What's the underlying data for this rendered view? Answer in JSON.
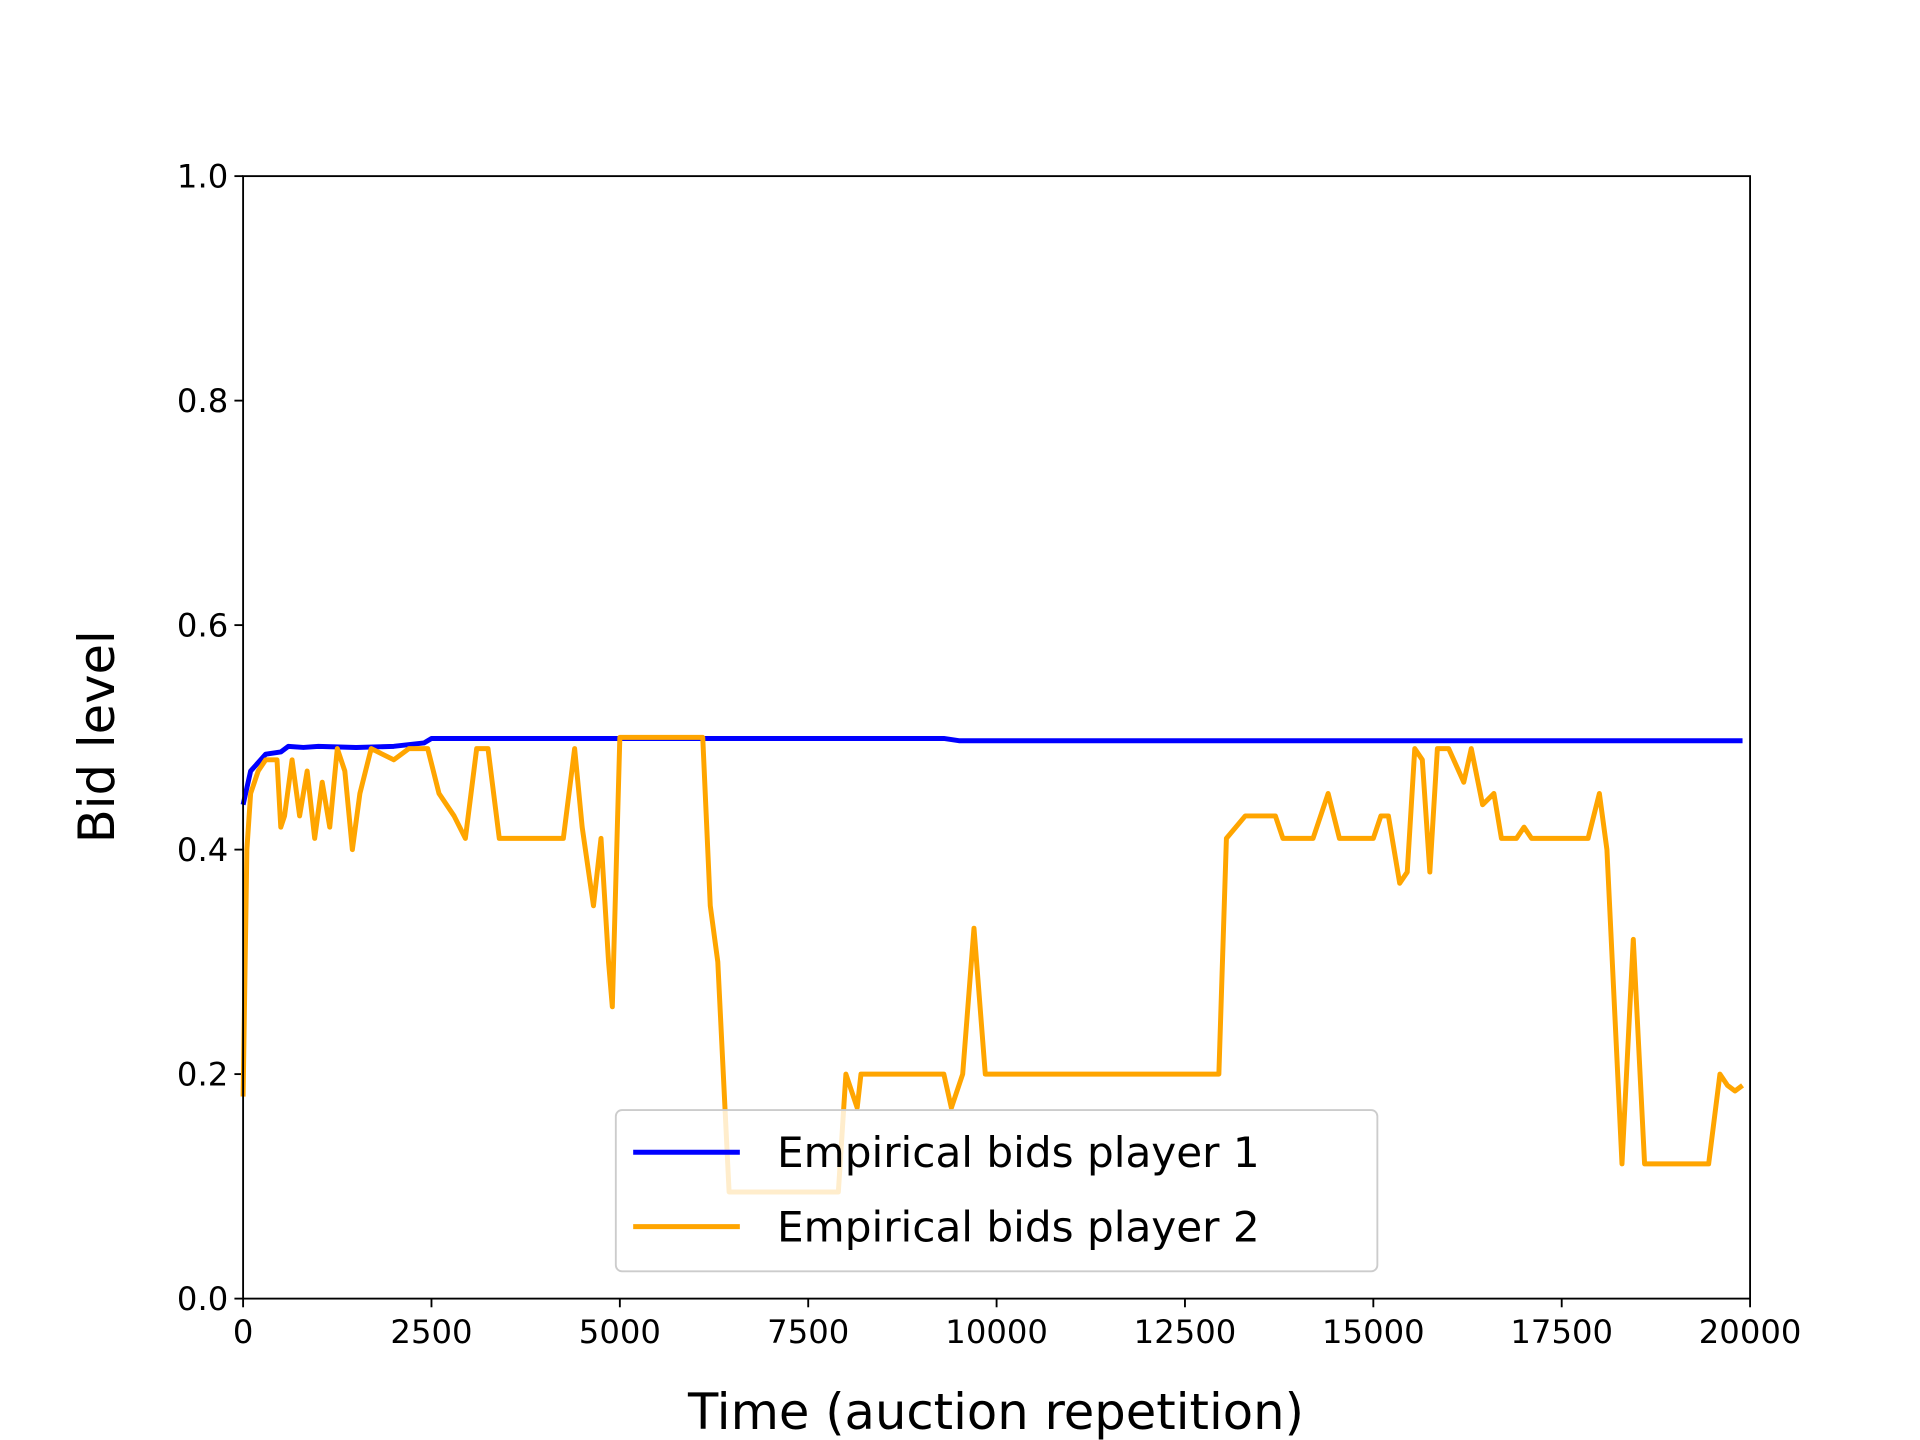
{
  "chart_data": {
    "type": "line",
    "xlabel": "Time (auction repetition)",
    "ylabel": "Bid level",
    "xlim": [
      0,
      20000
    ],
    "ylim": [
      0,
      1
    ],
    "xticks": [
      0,
      2500,
      5000,
      7500,
      10000,
      12500,
      15000,
      17500,
      20000
    ],
    "yticks": [
      {
        "value": 0,
        "label": "0.0"
      },
      0.2,
      0.4,
      0.6,
      0.8,
      {
        "value": 1,
        "label": "1.0"
      }
    ],
    "legend": "lower center",
    "series": [
      {
        "name": "Empirical bids player 1",
        "color": "#0000ff",
        "x": [
          0,
          100,
          300,
          500,
          600,
          800,
          1000,
          1500,
          2000,
          2400,
          2500,
          9300,
          9500,
          19900
        ],
        "values": [
          0.44,
          0.47,
          0.485,
          0.487,
          0.492,
          0.491,
          0.492,
          0.491,
          0.492,
          0.495,
          0.499,
          0.499,
          0.497,
          0.497
        ]
      },
      {
        "name": "Empirical bids player 2",
        "color": "#ffa500",
        "x": [
          0,
          50,
          100,
          200,
          300,
          450,
          500,
          550,
          650,
          750,
          850,
          950,
          1050,
          1150,
          1250,
          1350,
          1450,
          1550,
          1700,
          2000,
          2200,
          2450,
          2600,
          2800,
          2950,
          3100,
          3250,
          3400,
          4250,
          4400,
          4500,
          4650,
          4750,
          4850,
          4900,
          5000,
          6100,
          6200,
          6300,
          6450,
          7900,
          8000,
          8150,
          8200,
          9300,
          9400,
          9550,
          9700,
          9850,
          12950,
          13050,
          13300,
          13700,
          13800,
          14200,
          14400,
          14550,
          15000,
          15100,
          15200,
          15350,
          15450,
          15550,
          15650,
          15750,
          15850,
          16000,
          16200,
          16300,
          16450,
          16600,
          16700,
          16900,
          17000,
          17100,
          17850,
          18000,
          18100,
          18300,
          18450,
          18600,
          18800,
          19450,
          19600,
          19700,
          19800,
          19900
        ],
        "values": [
          0.18,
          0.4,
          0.45,
          0.47,
          0.48,
          0.48,
          0.42,
          0.43,
          0.48,
          0.43,
          0.47,
          0.41,
          0.46,
          0.42,
          0.49,
          0.47,
          0.4,
          0.45,
          0.49,
          0.48,
          0.49,
          0.49,
          0.45,
          0.43,
          0.41,
          0.49,
          0.49,
          0.41,
          0.41,
          0.49,
          0.42,
          0.35,
          0.41,
          0.3,
          0.26,
          0.5,
          0.5,
          0.35,
          0.3,
          0.095,
          0.095,
          0.2,
          0.17,
          0.2,
          0.2,
          0.17,
          0.2,
          0.33,
          0.2,
          0.2,
          0.41,
          0.43,
          0.43,
          0.41,
          0.41,
          0.45,
          0.41,
          0.41,
          0.43,
          0.43,
          0.37,
          0.38,
          0.49,
          0.48,
          0.38,
          0.49,
          0.49,
          0.46,
          0.49,
          0.44,
          0.45,
          0.41,
          0.41,
          0.42,
          0.41,
          0.41,
          0.45,
          0.4,
          0.12,
          0.32,
          0.12,
          0.12,
          0.12,
          0.2,
          0.19,
          0.185,
          0.19
        ]
      }
    ]
  }
}
